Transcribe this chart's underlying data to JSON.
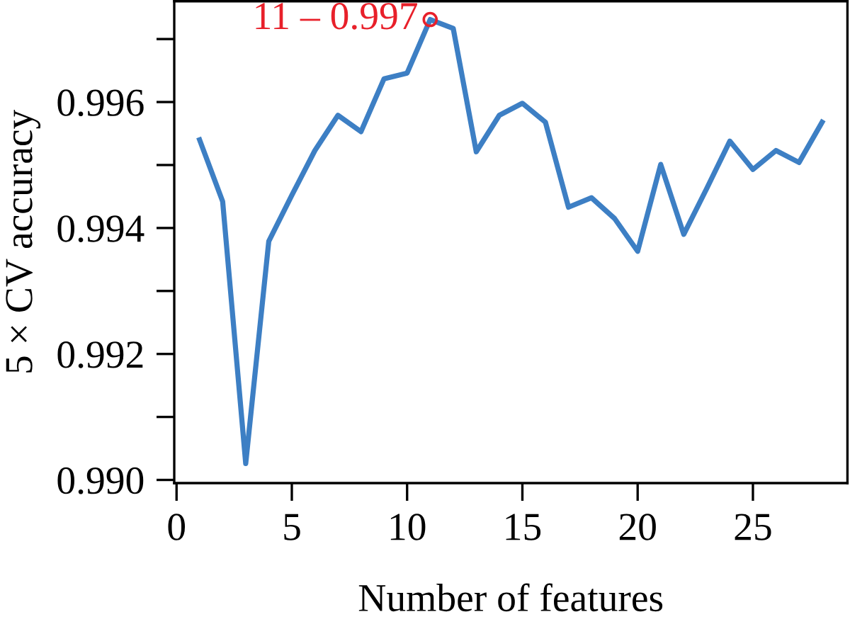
{
  "chart_data": {
    "type": "line",
    "xlabel": "Number of features",
    "ylabel": "5 × CV accuracy",
    "x": [
      1,
      2,
      3,
      4,
      5,
      6,
      7,
      8,
      9,
      10,
      11,
      12,
      13,
      14,
      15,
      16,
      17,
      18,
      19,
      20,
      21,
      22,
      23,
      24,
      25,
      26,
      27,
      28
    ],
    "series": [
      {
        "color": "#3d7fc4",
        "marker": "none",
        "line_style": "solid",
        "values": [
          0.9954,
          0.99442,
          0.99026,
          0.99379,
          0.99452,
          0.99523,
          0.99579,
          0.99553,
          0.99637,
          0.99646,
          0.99731,
          0.99717,
          0.99521,
          0.99579,
          0.99598,
          0.99568,
          0.99433,
          0.99448,
          0.99415,
          0.99363,
          0.99501,
          0.9939,
          0.99463,
          0.99538,
          0.99493,
          0.99523,
          0.99504,
          0.99568
        ]
      },
      {
        "type": "scatter",
        "color": "#e8202a",
        "marker": "circle",
        "x": [
          11
        ],
        "values": [
          0.99731
        ]
      }
    ],
    "annotations": [
      {
        "text": "11 – 0.997",
        "x": 11,
        "y": 0.99731
      }
    ],
    "xlim": [
      -0.1,
      29.1
    ],
    "ylim": [
      0.98995,
      0.9976
    ],
    "xticks": [
      0,
      5,
      10,
      15,
      20,
      25
    ],
    "yticks": [
      {
        "value": 0.99,
        "label": "0.990"
      },
      {
        "value": 0.991,
        "label": null
      },
      {
        "value": 0.992,
        "label": "0.992"
      },
      {
        "value": 0.993,
        "label": null
      },
      {
        "value": 0.994,
        "label": "0.994"
      },
      {
        "value": 0.995,
        "label": null
      },
      {
        "value": 0.996,
        "label": "0.996"
      },
      {
        "value": 0.997,
        "label": null
      }
    ],
    "grid": false
  }
}
